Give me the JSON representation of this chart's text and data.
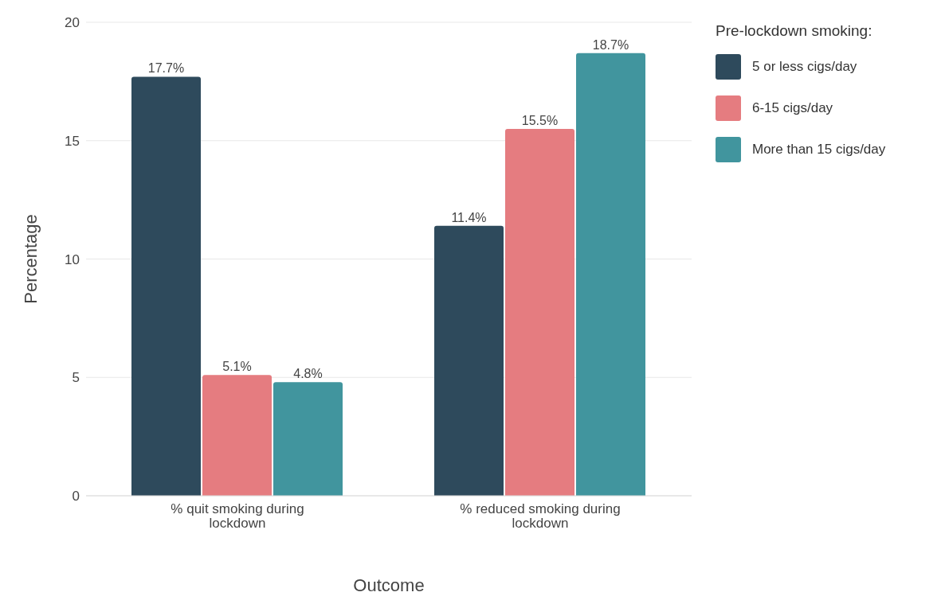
{
  "chart_data": {
    "type": "bar",
    "xlabel": "Outcome",
    "ylabel": "Percentage",
    "legend_title": "Pre-lockdown smoking:",
    "categories": [
      "% quit smoking during lockdown",
      "% reduced smoking during lockdown"
    ],
    "series": [
      {
        "name": "5 or less cigs/day",
        "color": "#2e4a5c",
        "values": [
          17.7,
          11.4
        ],
        "value_labels": [
          "17.7%",
          "11.4%"
        ]
      },
      {
        "name": "6-15 cigs/day",
        "color": "#e57c80",
        "values": [
          5.1,
          15.5
        ],
        "value_labels": [
          "5.1%",
          "15.5%"
        ]
      },
      {
        "name": "More than 15 cigs/day",
        "color": "#41959e",
        "values": [
          4.8,
          18.7
        ],
        "value_labels": [
          "4.8%",
          "18.7%"
        ]
      }
    ],
    "ylim": [
      0,
      20
    ],
    "yticks": [
      0,
      5,
      10,
      15,
      20
    ],
    "grid": "y",
    "legend": "top right"
  }
}
